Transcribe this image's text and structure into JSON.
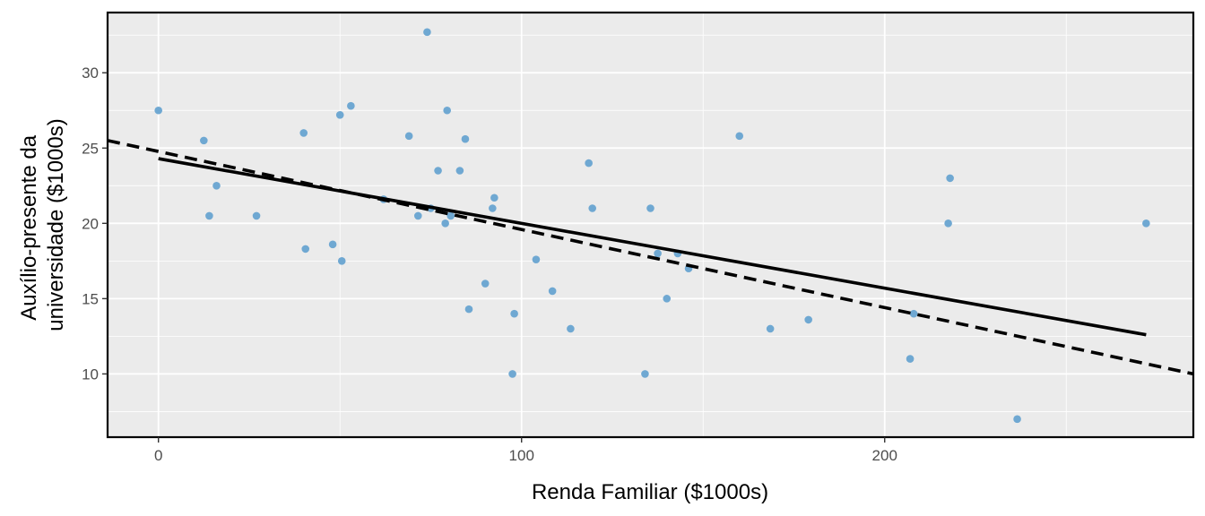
{
  "chart_data": {
    "type": "scatter",
    "title": "",
    "xlabel": "Renda Familiar ($1000s)",
    "ylabel_lines": [
      "Auxílio-presente da",
      "universidade ($1000s)"
    ],
    "xlim": [
      -14,
      285
    ],
    "ylim": [
      5.8,
      34
    ],
    "x_ticks": [
      0,
      100,
      200
    ],
    "x_tick_labels": [
      "0",
      "100",
      "200"
    ],
    "y_ticks": [
      10,
      15,
      20,
      25,
      30
    ],
    "y_tick_labels": [
      "10",
      "15",
      "20",
      "25",
      "30"
    ],
    "grid": true,
    "legend": "none",
    "point_color": "#6fa8d2",
    "panel_color": "#ebebeb",
    "points": [
      {
        "x": 0,
        "y": 27.5
      },
      {
        "x": 12.5,
        "y": 25.5
      },
      {
        "x": 14,
        "y": 20.5
      },
      {
        "x": 16,
        "y": 22.5
      },
      {
        "x": 27,
        "y": 20.5
      },
      {
        "x": 40,
        "y": 26
      },
      {
        "x": 40.5,
        "y": 18.3
      },
      {
        "x": 48,
        "y": 18.6
      },
      {
        "x": 50,
        "y": 27.2
      },
      {
        "x": 50.5,
        "y": 17.5
      },
      {
        "x": 53,
        "y": 27.8
      },
      {
        "x": 62,
        "y": 21.6
      },
      {
        "x": 69,
        "y": 25.8
      },
      {
        "x": 71.5,
        "y": 20.5
      },
      {
        "x": 74,
        "y": 32.7
      },
      {
        "x": 75,
        "y": 21
      },
      {
        "x": 77,
        "y": 23.5
      },
      {
        "x": 79,
        "y": 20
      },
      {
        "x": 79.5,
        "y": 27.5
      },
      {
        "x": 80.5,
        "y": 20.5
      },
      {
        "x": 83,
        "y": 23.5
      },
      {
        "x": 84.5,
        "y": 25.6
      },
      {
        "x": 85.5,
        "y": 14.3
      },
      {
        "x": 90,
        "y": 16
      },
      {
        "x": 92,
        "y": 21
      },
      {
        "x": 92.5,
        "y": 21.7
      },
      {
        "x": 97.5,
        "y": 10
      },
      {
        "x": 98,
        "y": 14
      },
      {
        "x": 104,
        "y": 17.6
      },
      {
        "x": 108.5,
        "y": 15.5
      },
      {
        "x": 113.5,
        "y": 13
      },
      {
        "x": 118.5,
        "y": 24
      },
      {
        "x": 119.5,
        "y": 21
      },
      {
        "x": 134,
        "y": 10
      },
      {
        "x": 135.5,
        "y": 21
      },
      {
        "x": 137.5,
        "y": 18
      },
      {
        "x": 140,
        "y": 15
      },
      {
        "x": 143,
        "y": 18
      },
      {
        "x": 146,
        "y": 17
      },
      {
        "x": 160,
        "y": 25.8
      },
      {
        "x": 168.5,
        "y": 13
      },
      {
        "x": 179,
        "y": 13.6
      },
      {
        "x": 207,
        "y": 11
      },
      {
        "x": 208,
        "y": 14
      },
      {
        "x": 217.5,
        "y": 20
      },
      {
        "x": 218,
        "y": 23
      },
      {
        "x": 236.5,
        "y": 7
      },
      {
        "x": 272,
        "y": 20
      }
    ],
    "fit_lines": [
      {
        "style": "solid",
        "x": [
          0,
          272
        ],
        "y": [
          24.3,
          12.6
        ]
      },
      {
        "style": "dashed",
        "x": [
          -14,
          285
        ],
        "y": [
          25.5,
          10
        ]
      }
    ]
  }
}
